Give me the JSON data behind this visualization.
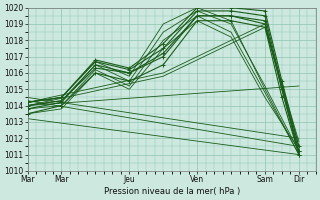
{
  "xlabel": "Pression niveau de la mer( hPa )",
  "bg_color": "#cce8df",
  "grid_color": "#90c4b0",
  "line_color": "#1a5c1a",
  "ylim": [
    1010,
    1020
  ],
  "yticks": [
    1010,
    1011,
    1012,
    1013,
    1014,
    1015,
    1016,
    1017,
    1018,
    1019,
    1020
  ],
  "xlabels": [
    "Mar",
    "Mar",
    "Jeu",
    "Ven",
    "Sam",
    "Dir"
  ],
  "xpositions": [
    0,
    24,
    72,
    120,
    168,
    192
  ],
  "xlim": [
    0,
    204
  ],
  "series": [
    {
      "x": [
        0,
        24,
        48,
        72,
        96,
        120,
        144,
        168,
        192
      ],
      "y": [
        1014.0,
        1014.3,
        1016.5,
        1015.5,
        1018.5,
        1019.8,
        1019.0,
        1015.2,
        1011.2
      ]
    },
    {
      "x": [
        0,
        24,
        48,
        72,
        96,
        120,
        144,
        168,
        192
      ],
      "y": [
        1013.8,
        1014.0,
        1016.2,
        1015.2,
        1018.0,
        1019.5,
        1018.5,
        1014.8,
        1011.0
      ]
    },
    {
      "x": [
        0,
        24,
        48,
        72,
        96,
        120,
        144,
        168,
        192
      ],
      "y": [
        1014.2,
        1014.5,
        1016.7,
        1015.8,
        1019.0,
        1020.0,
        1019.2,
        1015.0,
        1011.0
      ]
    },
    {
      "x": [
        0,
        24,
        48,
        72,
        96,
        120,
        144,
        168,
        192
      ],
      "y": [
        1013.5,
        1013.8,
        1016.0,
        1015.0,
        1017.5,
        1019.2,
        1018.2,
        1014.5,
        1011.3
      ]
    },
    {
      "x": [
        0,
        192
      ],
      "y": [
        1014.0,
        1015.2
      ]
    },
    {
      "x": [
        0,
        192
      ],
      "y": [
        1013.2,
        1011.0
      ]
    },
    {
      "x": [
        0,
        192
      ],
      "y": [
        1014.3,
        1011.5
      ]
    },
    {
      "x": [
        0,
        192
      ],
      "y": [
        1014.5,
        1012.0
      ]
    },
    {
      "x": [
        0,
        96,
        168,
        192
      ],
      "y": [
        1014.2,
        1016.0,
        1019.0,
        1011.5
      ]
    },
    {
      "x": [
        0,
        96,
        168,
        192
      ],
      "y": [
        1014.0,
        1015.8,
        1018.8,
        1011.8
      ]
    }
  ],
  "marker_series": [
    {
      "x": [
        0,
        24,
        48,
        72,
        96,
        120,
        144,
        168,
        180,
        192
      ],
      "y": [
        1014.0,
        1014.3,
        1016.3,
        1016.0,
        1017.0,
        1019.5,
        1019.5,
        1019.0,
        1015.0,
        1011.2
      ]
    },
    {
      "x": [
        0,
        24,
        48,
        72,
        96,
        120,
        144,
        168,
        180,
        192
      ],
      "y": [
        1013.5,
        1014.0,
        1016.0,
        1015.5,
        1016.5,
        1019.2,
        1019.2,
        1018.8,
        1014.5,
        1011.0
      ]
    },
    {
      "x": [
        0,
        24,
        48,
        72,
        96,
        120,
        144,
        168,
        180,
        192
      ],
      "y": [
        1014.2,
        1014.5,
        1016.7,
        1016.2,
        1017.5,
        1019.8,
        1019.8,
        1019.5,
        1015.2,
        1011.2
      ]
    },
    {
      "x": [
        0,
        24,
        48,
        72,
        96,
        120,
        144,
        168,
        180,
        192
      ],
      "y": [
        1013.8,
        1014.2,
        1016.5,
        1016.0,
        1017.2,
        1019.5,
        1019.5,
        1019.2,
        1015.0,
        1011.0
      ]
    },
    {
      "x": [
        0,
        24,
        48,
        72,
        96,
        120,
        144,
        168,
        180,
        192
      ],
      "y": [
        1014.2,
        1014.5,
        1016.8,
        1016.3,
        1017.8,
        1020.0,
        1020.0,
        1019.8,
        1015.5,
        1011.5
      ]
    }
  ]
}
